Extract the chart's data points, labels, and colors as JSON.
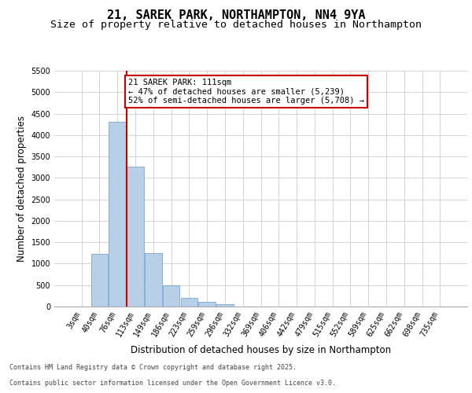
{
  "title_line1": "21, SAREK PARK, NORTHAMPTON, NN4 9YA",
  "title_line2": "Size of property relative to detached houses in Northampton",
  "xlabel": "Distribution of detached houses by size in Northampton",
  "ylabel": "Number of detached properties",
  "categories": [
    "3sqm",
    "40sqm",
    "76sqm",
    "113sqm",
    "149sqm",
    "186sqm",
    "223sqm",
    "259sqm",
    "296sqm",
    "332sqm",
    "369sqm",
    "406sqm",
    "442sqm",
    "479sqm",
    "515sqm",
    "552sqm",
    "589sqm",
    "625sqm",
    "662sqm",
    "698sqm",
    "735sqm"
  ],
  "values": [
    0,
    1220,
    4310,
    3270,
    1255,
    500,
    200,
    105,
    55,
    0,
    0,
    0,
    0,
    0,
    0,
    0,
    0,
    0,
    0,
    0,
    0
  ],
  "bar_color": "#b8cfe8",
  "bar_edgecolor": "#6699cc",
  "vline_color": "#cc0000",
  "annotation_text": "21 SAREK PARK: 111sqm\n← 47% of detached houses are smaller (5,239)\n52% of semi-detached houses are larger (5,708) →",
  "annotation_box_color": "#cc0000",
  "ylim": [
    0,
    5500
  ],
  "yticks": [
    0,
    500,
    1000,
    1500,
    2000,
    2500,
    3000,
    3500,
    4000,
    4500,
    5000,
    5500
  ],
  "footer_line1": "Contains HM Land Registry data © Crown copyright and database right 2025.",
  "footer_line2": "Contains public sector information licensed under the Open Government Licence v3.0.",
  "background_color": "#ffffff",
  "grid_color": "#cccccc",
  "title_fontsize": 11,
  "subtitle_fontsize": 9.5,
  "tick_fontsize": 7,
  "ylabel_fontsize": 8.5,
  "xlabel_fontsize": 8.5,
  "footer_fontsize": 6,
  "annot_fontsize": 7.5
}
